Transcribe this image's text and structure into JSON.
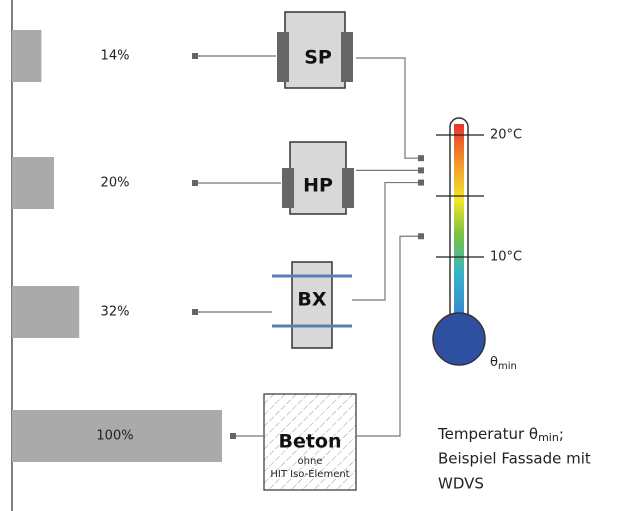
{
  "elements": [
    {
      "label": "SP",
      "value": 14,
      "value_label": "14%",
      "temperature": 18.1
    },
    {
      "label": "HP",
      "value": 20,
      "value_label": "20%",
      "temperature": 17.1
    },
    {
      "label": "BX",
      "value": 32,
      "value_label": "32%",
      "temperature": 16.1
    },
    {
      "label": "Beton",
      "sublabel": [
        "ohne",
        "HIT Iso-Element"
      ],
      "value": 100,
      "value_label": "100%",
      "temperature": 11.7
    }
  ],
  "bar_color": "#aaaaab",
  "thermometer": {
    "ticks": [
      {
        "value": 20,
        "label": "20°C"
      },
      {
        "value": 10,
        "label": "10°C"
      }
    ],
    "minor_ticks": [
      15
    ],
    "symbol": "θ",
    "subscript": "min"
  },
  "caption": {
    "prefix": "Temperatur θ",
    "subscript": "min",
    "suffix": ";",
    "lines": [
      "Beispiel Fassade mit",
      "WDVS"
    ]
  }
}
